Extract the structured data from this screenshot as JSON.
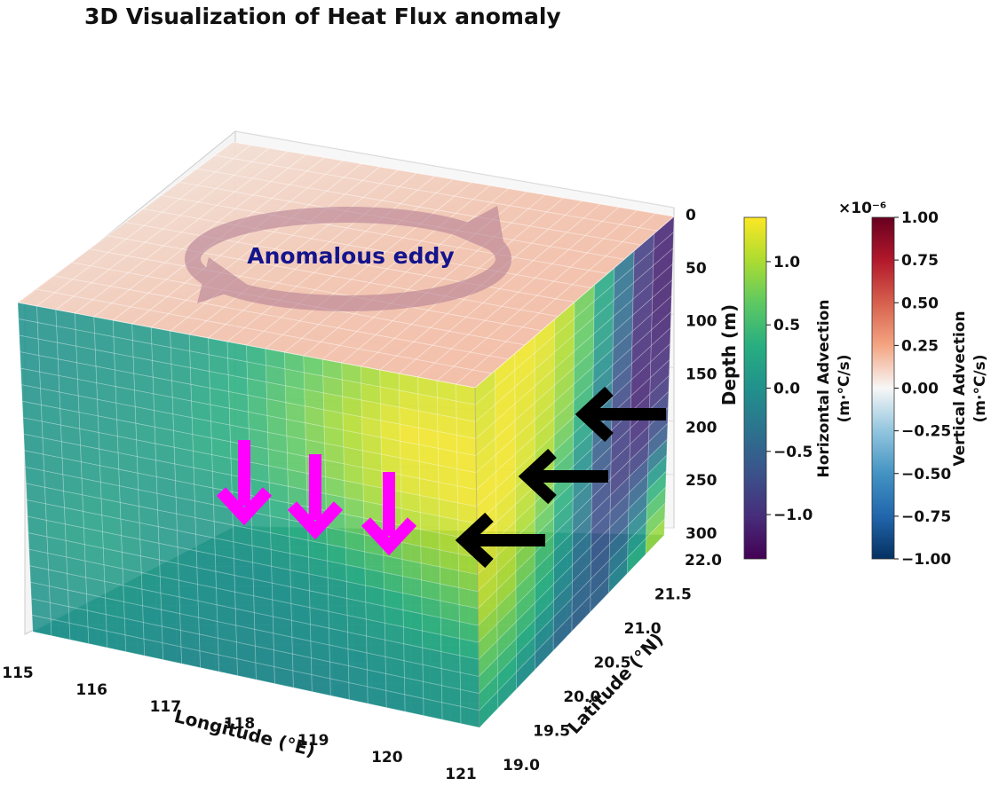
{
  "chart_data": {
    "type": "3d-volume",
    "title": "3D Visualization of Heat Flux anomaly",
    "annotation": "Anomalous eddy",
    "axes": {
      "x": {
        "label": "Longitude (°E)",
        "range": [
          115,
          121
        ],
        "ticks": [
          "115",
          "116",
          "117",
          "118",
          "119",
          "120",
          "121"
        ]
      },
      "y": {
        "label": "Latitude (°N)",
        "range": [
          19.0,
          22.0
        ],
        "ticks": [
          "19.0",
          "19.5",
          "20.0",
          "20.5",
          "21.0",
          "21.5",
          "22.0"
        ]
      },
      "z": {
        "label": "Depth (m)",
        "range": [
          0,
          300
        ],
        "inverted": true,
        "ticks": [
          "0",
          "50",
          "100",
          "150",
          "200",
          "250",
          "300"
        ]
      }
    },
    "colorbars": [
      {
        "label": "Horizontal Advection",
        "units": "(m·°C/s)",
        "cmap": "viridis",
        "range": [
          -1.35,
          1.35
        ],
        "ticks": [
          "1.0",
          "0.5",
          "0.0",
          "−0.5",
          "−1.0"
        ],
        "tick_values": [
          1.0,
          0.5,
          0.0,
          -0.5,
          -1.0
        ]
      },
      {
        "label": "Vertical Advection",
        "units": "(m·°C/s)",
        "cmap": "RdBu_r",
        "range": [
          -1.0,
          1.0
        ],
        "scale_label": "×10⁻⁶",
        "ticks": [
          "1.00",
          "0.75",
          "0.50",
          "0.25",
          "0.00",
          "−0.25",
          "−0.50",
          "−0.75",
          "−1.00"
        ],
        "tick_values": [
          1.0,
          0.75,
          0.5,
          0.25,
          0.0,
          -0.25,
          -0.5,
          -0.75,
          -1.0
        ]
      }
    ],
    "fields": {
      "horizontal_advection_east_face": {
        "rows_depth_m": [
          0,
          50,
          100,
          150,
          200,
          250,
          300
        ],
        "cols_latitude": [
          19.0,
          19.5,
          20.0,
          20.5,
          21.0,
          21.5,
          22.0
        ],
        "values": [
          [
            1.1,
            1.3,
            1.3,
            1.0,
            0.2,
            -0.8,
            -1.2
          ],
          [
            1.2,
            1.3,
            1.2,
            0.9,
            0.1,
            -0.9,
            -1.2
          ],
          [
            1.3,
            1.3,
            1.1,
            0.7,
            -0.2,
            -1.0,
            -1.1
          ],
          [
            1.3,
            1.2,
            0.9,
            0.3,
            -0.6,
            -1.1,
            -0.9
          ],
          [
            1.1,
            1.0,
            0.6,
            0.0,
            -0.8,
            -0.9,
            -0.5
          ],
          [
            0.7,
            0.6,
            0.3,
            -0.3,
            -0.7,
            -0.4,
            0.8
          ],
          [
            0.2,
            0.1,
            -0.3,
            -0.6,
            -0.5,
            0.3,
            1.3
          ]
        ]
      },
      "horizontal_advection_south_face": {
        "rows_depth_m": [
          0,
          50,
          100,
          150,
          200,
          250,
          300
        ],
        "cols_longitude": [
          115,
          116,
          117,
          118,
          119,
          120,
          121
        ],
        "values": [
          [
            0.0,
            0.05,
            0.1,
            0.3,
            0.7,
            1.1,
            1.2
          ],
          [
            0.0,
            0.05,
            0.15,
            0.4,
            0.9,
            1.3,
            1.3
          ],
          [
            0.05,
            0.1,
            0.2,
            0.4,
            0.8,
            1.2,
            1.3
          ],
          [
            0.05,
            0.15,
            0.1,
            0.2,
            0.5,
            0.9,
            1.1
          ],
          [
            0.1,
            0.2,
            0.05,
            0.0,
            0.1,
            0.4,
            0.7
          ],
          [
            0.05,
            0.1,
            0.0,
            -0.05,
            0.0,
            0.1,
            0.2
          ],
          [
            0.0,
            0.0,
            -0.1,
            -0.1,
            -0.1,
            0.0,
            0.1
          ]
        ]
      }
    },
    "arrows": {
      "downward_count": 3,
      "downward_color": "#ff00ff",
      "leftward_count": 3,
      "leftward_color": "#000000"
    },
    "grid": true
  }
}
